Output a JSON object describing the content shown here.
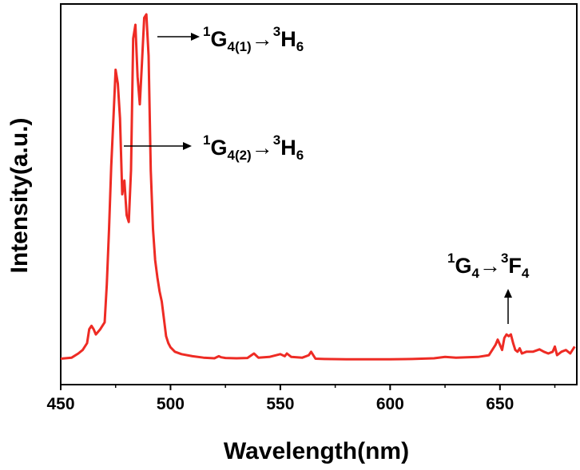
{
  "chart_data": {
    "type": "line",
    "xlabel": "Wavelength(nm)",
    "ylabel": "Intensity(a.u.)",
    "xlim": [
      450,
      685
    ],
    "ylim": [
      0,
      1.1
    ],
    "x_ticks": [
      450,
      500,
      550,
      600,
      650
    ],
    "y_ticks_shown": false,
    "grid": false,
    "series": [
      {
        "color": "#ee2b24",
        "x": [
          450,
          455,
          458,
          460,
          462,
          463,
          464,
          465,
          466,
          468,
          469,
          470,
          471,
          472,
          473,
          474,
          475,
          476,
          477,
          478,
          479,
          480,
          481,
          482,
          483,
          484,
          485,
          486,
          487,
          488,
          489,
          490,
          491,
          492,
          493,
          494,
          495,
          496,
          497,
          498,
          499,
          500,
          502,
          505,
          510,
          515,
          520,
          522,
          523,
          525,
          530,
          535,
          538,
          540,
          545,
          550,
          552,
          553,
          555,
          560,
          563,
          564,
          566,
          570,
          580,
          590,
          600,
          610,
          620,
          625,
          630,
          640,
          645,
          648,
          649,
          650,
          651,
          652,
          653,
          654,
          655,
          656,
          657,
          658,
          659,
          660,
          662,
          665,
          668,
          670,
          672,
          674,
          675,
          676,
          678,
          680,
          682,
          684
        ],
        "y": [
          0.005,
          0.008,
          0.02,
          0.03,
          0.05,
          0.09,
          0.1,
          0.09,
          0.075,
          0.09,
          0.1,
          0.11,
          0.22,
          0.38,
          0.56,
          0.7,
          0.84,
          0.8,
          0.7,
          0.48,
          0.52,
          0.42,
          0.4,
          0.55,
          0.93,
          0.97,
          0.82,
          0.74,
          0.86,
          0.99,
          1.0,
          0.88,
          0.55,
          0.38,
          0.29,
          0.24,
          0.2,
          0.17,
          0.12,
          0.07,
          0.05,
          0.038,
          0.025,
          0.018,
          0.012,
          0.008,
          0.006,
          0.012,
          0.009,
          0.007,
          0.006,
          0.007,
          0.02,
          0.008,
          0.01,
          0.018,
          0.012,
          0.02,
          0.01,
          0.008,
          0.015,
          0.025,
          0.005,
          0.004,
          0.003,
          0.003,
          0.003,
          0.004,
          0.006,
          0.01,
          0.008,
          0.01,
          0.015,
          0.045,
          0.06,
          0.045,
          0.03,
          0.065,
          0.075,
          0.07,
          0.075,
          0.05,
          0.03,
          0.025,
          0.035,
          0.02,
          0.025,
          0.025,
          0.032,
          0.025,
          0.02,
          0.025,
          0.04,
          0.015,
          0.025,
          0.03,
          0.02,
          0.04
        ]
      }
    ],
    "annotations": [
      {
        "label": "G4(1)→H6",
        "pre": "1",
        "main": "G",
        "sub": "4(1)",
        "arrow": "→",
        "pre2": "3",
        "main2": "H",
        "sub2": "6"
      },
      {
        "label": "G4(2)→H6",
        "pre": "1",
        "main": "G",
        "sub": "4(2)",
        "arrow": "→",
        "pre2": "3",
        "main2": "H",
        "sub2": "6"
      },
      {
        "label": "G4→F4",
        "pre": "1",
        "main": "G",
        "sub": "4",
        "arrow": "→",
        "pre2": "3",
        "main2": "F",
        "sub2": "4"
      }
    ]
  }
}
